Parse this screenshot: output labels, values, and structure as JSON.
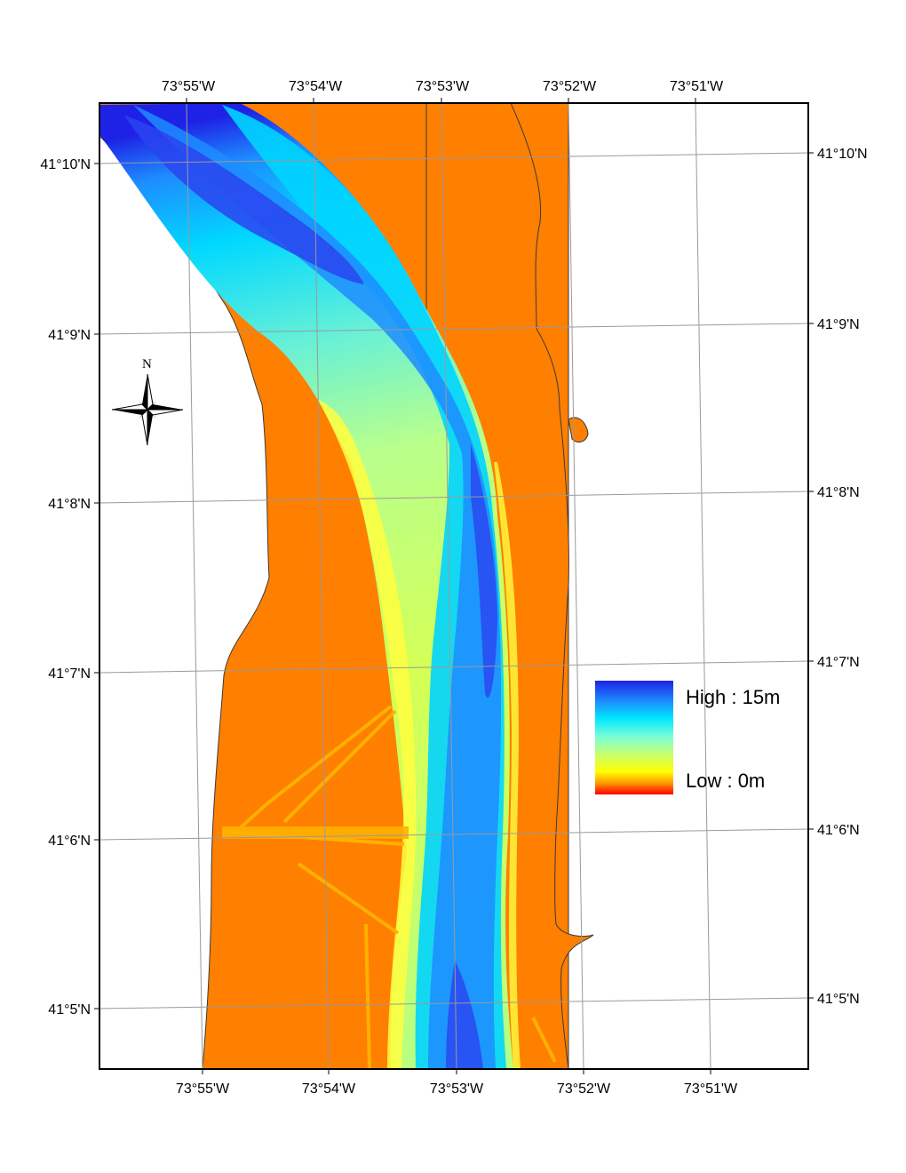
{
  "map": {
    "colors": {
      "land": "#FF7F00",
      "background": "#FFFFFF",
      "frame": "#000000",
      "graticule": "#9A9A9A"
    },
    "top_longitude_labels": [
      "73°55'W",
      "73°54'W",
      "73°53'W",
      "73°52'W",
      "73°51'W"
    ],
    "bottom_longitude_labels": [
      "73°55'W",
      "73°54'W",
      "73°53'W",
      "73°52'W",
      "73°51'W"
    ],
    "left_latitude_labels": [
      "41°10'N",
      "41°9'N",
      "41°8'N",
      "41°7'N",
      "41°6'N",
      "41°5'N"
    ],
    "right_latitude_labels": [
      "41°10'N",
      "41°9'N",
      "41°8'N",
      "41°7'N",
      "41°6'N",
      "41°5'N"
    ],
    "north_arrow": {
      "letter": "N",
      "icon": "compass-rose-icon"
    },
    "legend": {
      "high_label": "High : 15m",
      "low_label": "Low : 0m",
      "ramp_colors": [
        "#1E22E6",
        "#1E8CFF",
        "#00E6FF",
        "#7FFFD4",
        "#CCFF66",
        "#FFFF00",
        "#FF9900",
        "#FF0000"
      ]
    }
  }
}
